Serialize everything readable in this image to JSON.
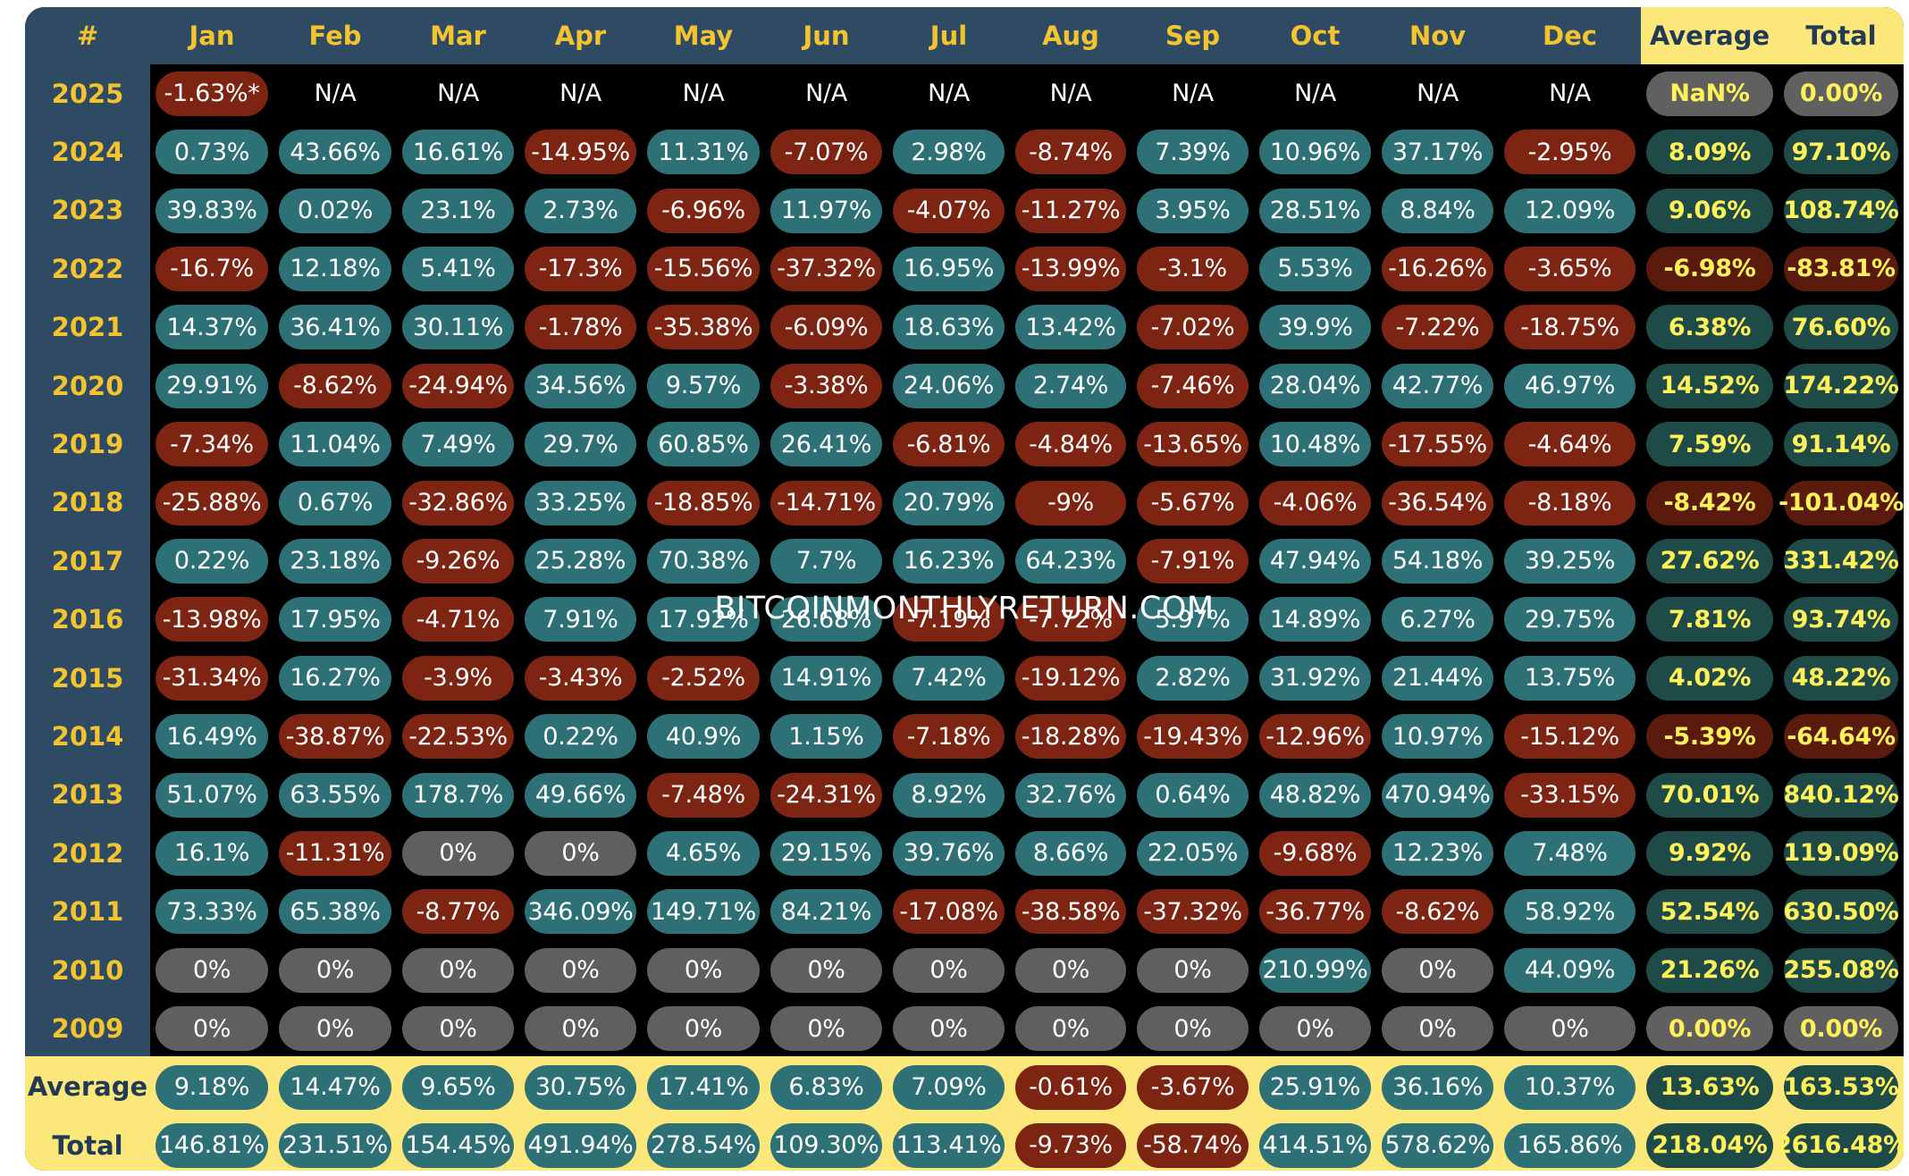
{
  "header": {
    "corner": "#",
    "months": [
      "Jan",
      "Feb",
      "Mar",
      "Apr",
      "May",
      "Jun",
      "Jul",
      "Aug",
      "Sep",
      "Oct",
      "Nov",
      "Dec"
    ],
    "average_label": "Average",
    "total_label": "Total"
  },
  "watermark": "BITCOINMONTHLYRETURN.COM",
  "colors": {
    "positive": "#2d7177",
    "negative": "#7d2412",
    "zero": "#5f5f5f",
    "header_bg": "#2f4a63",
    "header_text": "#f3c430",
    "summary_bg": "#fbe77a",
    "summary_text": "#fff15a"
  },
  "chart_data": {
    "type": "table",
    "columns": [
      "Jan",
      "Feb",
      "Mar",
      "Apr",
      "May",
      "Jun",
      "Jul",
      "Aug",
      "Sep",
      "Oct",
      "Nov",
      "Dec",
      "Average",
      "Total"
    ],
    "rows": [
      {
        "year": "2025",
        "months": [
          "-1.63%*",
          "N/A",
          "N/A",
          "N/A",
          "N/A",
          "N/A",
          "N/A",
          "N/A",
          "N/A",
          "N/A",
          "N/A",
          "N/A"
        ],
        "average": "NaN%",
        "total": "0.00%"
      },
      {
        "year": "2024",
        "months": [
          "0.73%",
          "43.66%",
          "16.61%",
          "-14.95%",
          "11.31%",
          "-7.07%",
          "2.98%",
          "-8.74%",
          "7.39%",
          "10.96%",
          "37.17%",
          "-2.95%"
        ],
        "average": "8.09%",
        "total": "97.10%"
      },
      {
        "year": "2023",
        "months": [
          "39.83%",
          "0.02%",
          "23.1%",
          "2.73%",
          "-6.96%",
          "11.97%",
          "-4.07%",
          "-11.27%",
          "3.95%",
          "28.51%",
          "8.84%",
          "12.09%"
        ],
        "average": "9.06%",
        "total": "108.74%"
      },
      {
        "year": "2022",
        "months": [
          "-16.7%",
          "12.18%",
          "5.41%",
          "-17.3%",
          "-15.56%",
          "-37.32%",
          "16.95%",
          "-13.99%",
          "-3.1%",
          "5.53%",
          "-16.26%",
          "-3.65%"
        ],
        "average": "-6.98%",
        "total": "-83.81%"
      },
      {
        "year": "2021",
        "months": [
          "14.37%",
          "36.41%",
          "30.11%",
          "-1.78%",
          "-35.38%",
          "-6.09%",
          "18.63%",
          "13.42%",
          "-7.02%",
          "39.9%",
          "-7.22%",
          "-18.75%"
        ],
        "average": "6.38%",
        "total": "76.60%"
      },
      {
        "year": "2020",
        "months": [
          "29.91%",
          "-8.62%",
          "-24.94%",
          "34.56%",
          "9.57%",
          "-3.38%",
          "24.06%",
          "2.74%",
          "-7.46%",
          "28.04%",
          "42.77%",
          "46.97%"
        ],
        "average": "14.52%",
        "total": "174.22%"
      },
      {
        "year": "2019",
        "months": [
          "-7.34%",
          "11.04%",
          "7.49%",
          "29.7%",
          "60.85%",
          "26.41%",
          "-6.81%",
          "-4.84%",
          "-13.65%",
          "10.48%",
          "-17.55%",
          "-4.64%"
        ],
        "average": "7.59%",
        "total": "91.14%"
      },
      {
        "year": "2018",
        "months": [
          "-25.88%",
          "0.67%",
          "-32.86%",
          "33.25%",
          "-18.85%",
          "-14.71%",
          "20.79%",
          "-9%",
          "-5.67%",
          "-4.06%",
          "-36.54%",
          "-8.18%"
        ],
        "average": "-8.42%",
        "total": "-101.04%"
      },
      {
        "year": "2017",
        "months": [
          "0.22%",
          "23.18%",
          "-9.26%",
          "25.28%",
          "70.38%",
          "7.7%",
          "16.23%",
          "64.23%",
          "-7.91%",
          "47.94%",
          "54.18%",
          "39.25%"
        ],
        "average": "27.62%",
        "total": "331.42%"
      },
      {
        "year": "2016",
        "months": [
          "-13.98%",
          "17.95%",
          "-4.71%",
          "7.91%",
          "17.92%",
          "26.68%",
          "-7.19%",
          "-7.72%",
          "5.97%",
          "14.89%",
          "6.27%",
          "29.75%"
        ],
        "average": "7.81%",
        "total": "93.74%"
      },
      {
        "year": "2015",
        "months": [
          "-31.34%",
          "16.27%",
          "-3.9%",
          "-3.43%",
          "-2.52%",
          "14.91%",
          "7.42%",
          "-19.12%",
          "2.82%",
          "31.92%",
          "21.44%",
          "13.75%"
        ],
        "average": "4.02%",
        "total": "48.22%"
      },
      {
        "year": "2014",
        "months": [
          "16.49%",
          "-38.87%",
          "-22.53%",
          "0.22%",
          "40.9%",
          "1.15%",
          "-7.18%",
          "-18.28%",
          "-19.43%",
          "-12.96%",
          "10.97%",
          "-15.12%"
        ],
        "average": "-5.39%",
        "total": "-64.64%"
      },
      {
        "year": "2013",
        "months": [
          "51.07%",
          "63.55%",
          "178.7%",
          "49.66%",
          "-7.48%",
          "-24.31%",
          "8.92%",
          "32.76%",
          "0.64%",
          "48.82%",
          "470.94%",
          "-33.15%"
        ],
        "average": "70.01%",
        "total": "840.12%"
      },
      {
        "year": "2012",
        "months": [
          "16.1%",
          "-11.31%",
          "0%",
          "0%",
          "4.65%",
          "29.15%",
          "39.76%",
          "8.66%",
          "22.05%",
          "-9.68%",
          "12.23%",
          "7.48%"
        ],
        "average": "9.92%",
        "total": "119.09%"
      },
      {
        "year": "2011",
        "months": [
          "73.33%",
          "65.38%",
          "-8.77%",
          "346.09%",
          "149.71%",
          "84.21%",
          "-17.08%",
          "-38.58%",
          "-37.32%",
          "-36.77%",
          "-8.62%",
          "58.92%"
        ],
        "average": "52.54%",
        "total": "630.50%"
      },
      {
        "year": "2010",
        "months": [
          "0%",
          "0%",
          "0%",
          "0%",
          "0%",
          "0%",
          "0%",
          "0%",
          "0%",
          "210.99%",
          "0%",
          "44.09%"
        ],
        "average": "21.26%",
        "total": "255.08%"
      },
      {
        "year": "2009",
        "months": [
          "0%",
          "0%",
          "0%",
          "0%",
          "0%",
          "0%",
          "0%",
          "0%",
          "0%",
          "0%",
          "0%",
          "0%"
        ],
        "average": "0.00%",
        "total": "0.00%"
      }
    ],
    "footer": [
      {
        "label": "Average",
        "months": [
          "9.18%",
          "14.47%",
          "9.65%",
          "30.75%",
          "17.41%",
          "6.83%",
          "7.09%",
          "-0.61%",
          "-3.67%",
          "25.91%",
          "36.16%",
          "10.37%"
        ],
        "average": "13.63%",
        "total": "163.53%"
      },
      {
        "label": "Total",
        "months": [
          "146.81%",
          "231.51%",
          "154.45%",
          "491.94%",
          "278.54%",
          "109.30%",
          "113.41%",
          "-9.73%",
          "-58.74%",
          "414.51%",
          "578.62%",
          "165.86%"
        ],
        "average": "218.04%",
        "total": "2616.48%"
      }
    ]
  }
}
